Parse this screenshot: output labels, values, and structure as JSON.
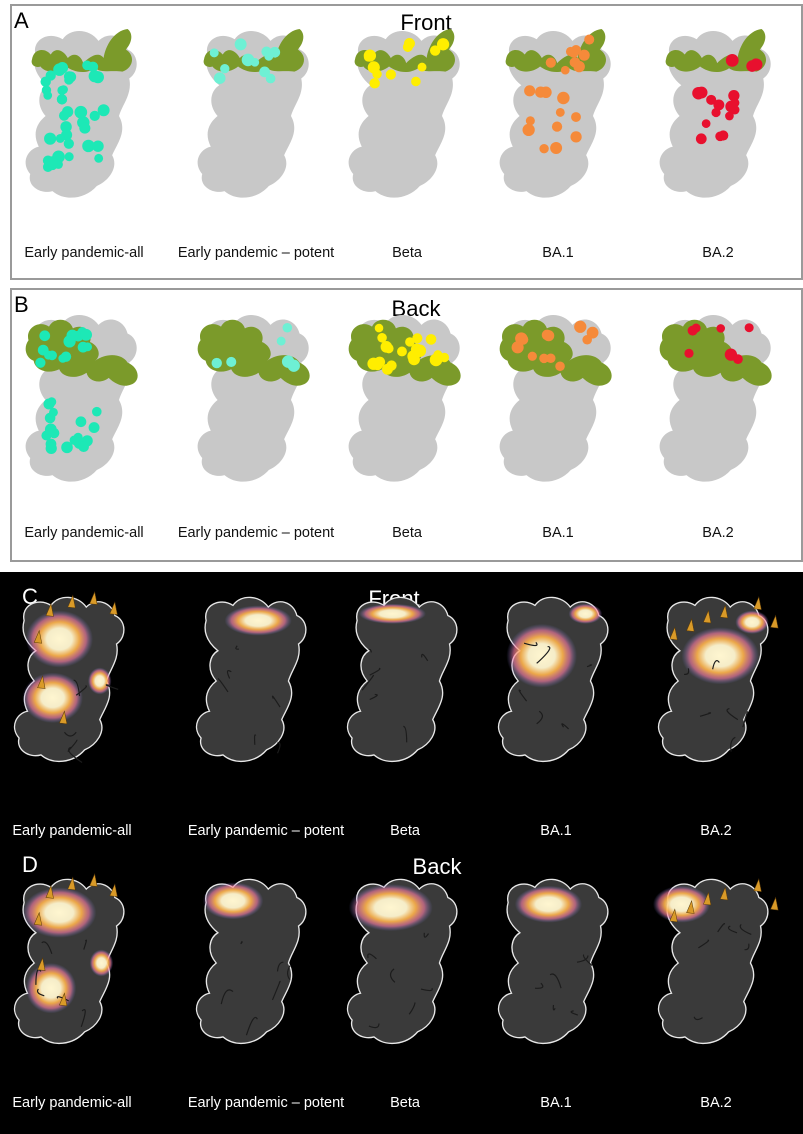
{
  "colors": {
    "surface_gray": "#c8c8c8",
    "epitope_green": "#7b9a2a",
    "early_pandemic_all": "#1de8b6",
    "early_pandemic_potent": "#6ef0d4",
    "beta": "#ffee00",
    "ba1": "#f58a3a",
    "ba2": "#e8102e",
    "dark_surface": "#3a3a3a",
    "heat_core": "#fff6d0",
    "heat_mid": "#ffb34a",
    "heat_edge": "#ff7fa8",
    "heat_rim": "#6f7bd8"
  },
  "panels": [
    {
      "letter": "A",
      "title": "Front",
      "style": "light",
      "structures": [
        {
          "label": "Early pandemic-all",
          "color_key": "early_pandemic_all",
          "dots": 38
        },
        {
          "label": "Early pandemic – potent",
          "color_key": "early_pandemic_potent",
          "dots": 11
        },
        {
          "label": "Beta",
          "color_key": "beta",
          "dots": 12
        },
        {
          "label": "BA.1",
          "color_key": "ba1",
          "dots": 22
        },
        {
          "label": "BA.2",
          "color_key": "ba2",
          "dots": 18
        }
      ]
    },
    {
      "letter": "B",
      "title": "Back",
      "style": "light",
      "structures": [
        {
          "label": "Early pandemic-all",
          "color_key": "early_pandemic_all",
          "dots": 32
        },
        {
          "label": "Early pandemic – potent",
          "color_key": "early_pandemic_potent",
          "dots": 6
        },
        {
          "label": "Beta",
          "color_key": "beta",
          "dots": 20
        },
        {
          "label": "BA.1",
          "color_key": "ba1",
          "dots": 12
        },
        {
          "label": "BA.2",
          "color_key": "ba2",
          "dots": 7
        }
      ]
    },
    {
      "letter": "C",
      "title": "Front",
      "style": "dark",
      "structures": [
        {
          "label": "Early pandemic-all"
        },
        {
          "label": "Early pandemic – potent"
        },
        {
          "label": "Beta"
        },
        {
          "label": "BA.1"
        },
        {
          "label": "BA.2"
        }
      ]
    },
    {
      "letter": "D",
      "title": "Back",
      "style": "dark",
      "structures": [
        {
          "label": "Early pandemic-all"
        },
        {
          "label": "Early pandemic – potent"
        },
        {
          "label": "Beta"
        },
        {
          "label": "BA.1"
        },
        {
          "label": "BA.2"
        }
      ]
    }
  ]
}
